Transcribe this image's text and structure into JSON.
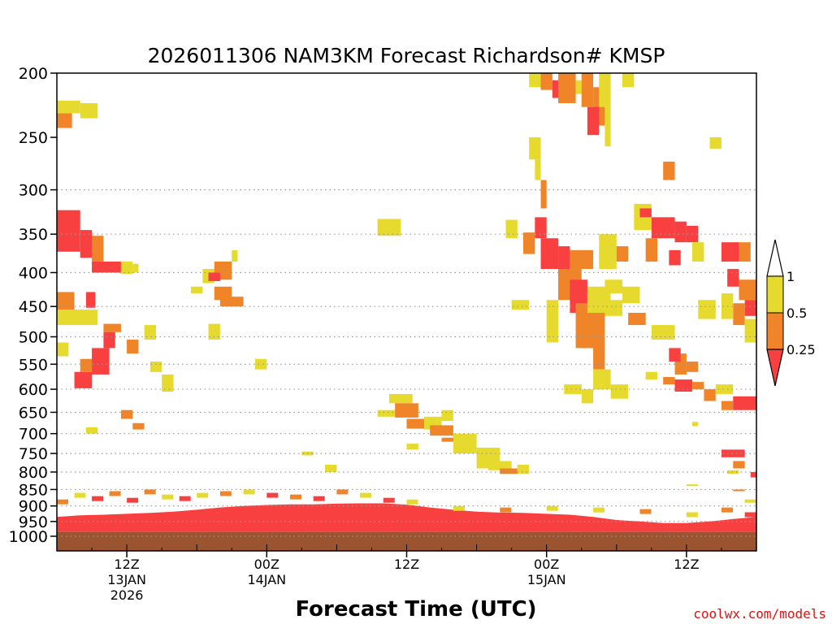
{
  "chart_data": {
    "type": "heatmap",
    "title": "2026011306 NAM3KM Forecast Richardson# KMSP",
    "xlabel": "Forecast Time (UTC)",
    "credit": "coolwx.com/models",
    "y_axis": {
      "scale": "pressure",
      "range": [
        200,
        1000
      ],
      "ticks": [
        200,
        250,
        300,
        350,
        400,
        450,
        500,
        550,
        600,
        650,
        700,
        750,
        800,
        850,
        900,
        950,
        1000
      ],
      "gridlines": [
        300,
        350,
        400,
        450,
        500,
        550,
        600,
        650,
        700,
        750,
        800,
        850,
        900,
        950,
        1000
      ]
    },
    "x_axis": {
      "range_hours_from_init": [
        0,
        60
      ],
      "ticks": [
        {
          "time": "12Z",
          "date": "13JAN",
          "year": "2026",
          "t": 6
        },
        {
          "time": "00Z",
          "date": "14JAN",
          "year": "",
          "t": 18
        },
        {
          "time": "12Z",
          "date": "",
          "year": "",
          "t": 30
        },
        {
          "time": "00Z",
          "date": "15JAN",
          "year": "",
          "t": 42
        },
        {
          "time": "12Z",
          "date": "",
          "year": "",
          "t": 54
        }
      ]
    },
    "legend": {
      "placement": "right",
      "max_label": "1",
      "items": [
        {
          "label": "0.5",
          "color": "#e6da2e",
          "range": [
            0.5,
            1
          ]
        },
        {
          "label": "0.25",
          "color": "#f08428",
          "range": [
            0.25,
            0.5
          ]
        },
        {
          "label": "",
          "color": "#f84040",
          "range": [
            null,
            0.25
          ]
        }
      ]
    },
    "colors": {
      "ri_lt_1": "#e6da2e",
      "ri_lt_05": "#f08428",
      "ri_lt_025": "#f84040",
      "ground": "#9a5530"
    },
    "ground_level_hpa": 985,
    "cells": [
      [
        0,
        2,
        220,
        230,
        "Y"
      ],
      [
        0,
        1.3,
        230,
        242,
        "O"
      ],
      [
        2,
        3.5,
        222,
        234,
        "Y"
      ],
      [
        0,
        2,
        322,
        372,
        "R"
      ],
      [
        2,
        3,
        345,
        380,
        "R"
      ],
      [
        3,
        4,
        352,
        385,
        "O"
      ],
      [
        3,
        5.5,
        385,
        400,
        "R"
      ],
      [
        5.5,
        6.5,
        385,
        402,
        "Y"
      ],
      [
        6.5,
        7,
        388,
        400,
        "Y"
      ],
      [
        0,
        1.5,
        428,
        455,
        "O"
      ],
      [
        2.5,
        3.3,
        428,
        452,
        "R"
      ],
      [
        0,
        3.5,
        455,
        480,
        "Y"
      ],
      [
        4,
        5.5,
        478,
        492,
        "O"
      ],
      [
        4,
        5,
        492,
        520,
        "R"
      ],
      [
        0,
        1,
        510,
        535,
        "Y"
      ],
      [
        3,
        4.5,
        520,
        570,
        "R"
      ],
      [
        2,
        3,
        540,
        565,
        "O"
      ],
      [
        1.5,
        3,
        565,
        598,
        "R"
      ],
      [
        6,
        7,
        505,
        530,
        "O"
      ],
      [
        7.5,
        8.5,
        480,
        505,
        "Y"
      ],
      [
        8,
        9,
        545,
        565,
        "Y"
      ],
      [
        9,
        10,
        570,
        605,
        "Y"
      ],
      [
        11.5,
        12.5,
        420,
        430,
        "Y"
      ],
      [
        12.5,
        13.5,
        395,
        415,
        "Y"
      ],
      [
        13.5,
        15,
        385,
        410,
        "O"
      ],
      [
        13,
        14,
        400,
        412,
        "R"
      ],
      [
        13.5,
        15,
        420,
        440,
        "O"
      ],
      [
        14,
        16,
        435,
        450,
        "O"
      ],
      [
        15,
        15.5,
        370,
        385,
        "Y"
      ],
      [
        13,
        14,
        478,
        505,
        "Y"
      ],
      [
        17,
        18,
        540,
        560,
        "Y"
      ],
      [
        5.5,
        6.5,
        645,
        665,
        "O"
      ],
      [
        6.5,
        7.5,
        675,
        690,
        "O"
      ],
      [
        2.5,
        3.5,
        685,
        700,
        "Y"
      ],
      [
        21,
        22,
        745,
        755,
        "Y"
      ],
      [
        23,
        24,
        780,
        800,
        "Y"
      ],
      [
        27.5,
        29.5,
        332,
        352,
        "Y"
      ],
      [
        27.5,
        29,
        645,
        660,
        "Y"
      ],
      [
        28.5,
        30.5,
        610,
        630,
        "Y"
      ],
      [
        29,
        31,
        630,
        662,
        "O"
      ],
      [
        30,
        32,
        665,
        688,
        "O"
      ],
      [
        31.5,
        33,
        660,
        690,
        "Y"
      ],
      [
        32,
        34,
        680,
        705,
        "O"
      ],
      [
        33,
        35,
        710,
        720,
        "O"
      ],
      [
        33,
        34,
        645,
        670,
        "Y"
      ],
      [
        34,
        36,
        700,
        750,
        "Y"
      ],
      [
        36,
        38,
        735,
        790,
        "Y"
      ],
      [
        37,
        39,
        770,
        795,
        "Y"
      ],
      [
        38,
        39.5,
        790,
        805,
        "O"
      ],
      [
        39.5,
        40.5,
        780,
        805,
        "Y"
      ],
      [
        30,
        31,
        725,
        740,
        "Y"
      ],
      [
        38.5,
        39.5,
        333,
        355,
        "Y"
      ],
      [
        39,
        40.5,
        440,
        455,
        "Y"
      ],
      [
        40.5,
        41.5,
        200,
        210,
        "Y"
      ],
      [
        41.5,
        42.5,
        200,
        212,
        "O"
      ],
      [
        43,
        44.5,
        200,
        222,
        "O"
      ],
      [
        42.5,
        43,
        205,
        218,
        "R"
      ],
      [
        44.5,
        45,
        205,
        215,
        "Y"
      ],
      [
        45,
        46,
        200,
        225,
        "O"
      ],
      [
        46,
        47,
        210,
        240,
        "O"
      ],
      [
        45.5,
        46.5,
        225,
        248,
        "R"
      ],
      [
        46.5,
        47.5,
        200,
        225,
        "Y"
      ],
      [
        47,
        47.5,
        225,
        258,
        "Y"
      ],
      [
        48.5,
        49.5,
        200,
        210,
        "Y"
      ],
      [
        40.5,
        41.5,
        250,
        270,
        "Y"
      ],
      [
        41,
        41.5,
        270,
        290,
        "Y"
      ],
      [
        41.5,
        42,
        290,
        320,
        "O"
      ],
      [
        41,
        42,
        330,
        355,
        "R"
      ],
      [
        40,
        41,
        348,
        375,
        "O"
      ],
      [
        41.5,
        43,
        355,
        395,
        "R"
      ],
      [
        43,
        44,
        365,
        410,
        "R"
      ],
      [
        43,
        45,
        395,
        440,
        "O"
      ],
      [
        44,
        45.5,
        410,
        460,
        "R"
      ],
      [
        44.5,
        47,
        445,
        520,
        "O"
      ],
      [
        45.5,
        47.5,
        420,
        460,
        "Y"
      ],
      [
        47,
        48.5,
        440,
        465,
        "Y"
      ],
      [
        42,
        43,
        440,
        510,
        "Y"
      ],
      [
        45,
        46,
        480,
        520,
        "O"
      ],
      [
        46,
        47,
        515,
        560,
        "O"
      ],
      [
        46,
        47.5,
        560,
        600,
        "Y"
      ],
      [
        43.5,
        45,
        590,
        610,
        "Y"
      ],
      [
        45,
        46,
        600,
        630,
        "Y"
      ],
      [
        47.5,
        49,
        590,
        620,
        "Y"
      ],
      [
        44,
        46,
        370,
        395,
        "O"
      ],
      [
        46.5,
        48,
        350,
        395,
        "Y"
      ],
      [
        48,
        49,
        365,
        385,
        "O"
      ],
      [
        47,
        48.5,
        410,
        430,
        "Y"
      ],
      [
        48.5,
        50,
        420,
        445,
        "Y"
      ],
      [
        49,
        50.5,
        460,
        480,
        "O"
      ],
      [
        51,
        53,
        480,
        505,
        "Y"
      ],
      [
        49.5,
        51,
        315,
        345,
        "Y"
      ],
      [
        51,
        53,
        330,
        355,
        "R"
      ],
      [
        53,
        54,
        335,
        360,
        "R"
      ],
      [
        54,
        55,
        340,
        360,
        "R"
      ],
      [
        52.5,
        53.5,
        370,
        390,
        "R"
      ],
      [
        54.5,
        55.5,
        360,
        385,
        "Y"
      ],
      [
        50.5,
        51.5,
        355,
        385,
        "O"
      ],
      [
        50,
        51,
        320,
        330,
        "R"
      ],
      [
        52,
        53,
        272,
        290,
        "O"
      ],
      [
        56,
        57,
        250,
        260,
        "Y"
      ],
      [
        57,
        58.5,
        360,
        385,
        "R"
      ],
      [
        58.5,
        59.5,
        360,
        385,
        "O"
      ],
      [
        57.5,
        58.5,
        395,
        420,
        "R"
      ],
      [
        58.5,
        60,
        410,
        440,
        "O"
      ],
      [
        59,
        60,
        440,
        465,
        "R"
      ],
      [
        58,
        59,
        445,
        480,
        "O"
      ],
      [
        57,
        58,
        430,
        470,
        "Y"
      ],
      [
        59,
        60,
        470,
        510,
        "Y"
      ],
      [
        55,
        56.5,
        440,
        470,
        "Y"
      ],
      [
        53,
        54,
        530,
        570,
        "O"
      ],
      [
        52.5,
        53.5,
        520,
        545,
        "R"
      ],
      [
        54,
        55,
        545,
        565,
        "O"
      ],
      [
        53,
        54.5,
        580,
        605,
        "R"
      ],
      [
        54.5,
        55.5,
        585,
        600,
        "O"
      ],
      [
        55.5,
        56.5,
        600,
        625,
        "O"
      ],
      [
        56.5,
        58,
        590,
        610,
        "Y"
      ],
      [
        57,
        58,
        625,
        645,
        "O"
      ],
      [
        58,
        60,
        615,
        645,
        "R"
      ],
      [
        54.5,
        55,
        672,
        682,
        "Y"
      ],
      [
        57,
        59,
        740,
        760,
        "R"
      ],
      [
        58,
        59,
        770,
        790,
        "O"
      ],
      [
        59.5,
        60,
        800,
        815,
        "R"
      ],
      [
        57.5,
        58.5,
        795,
        805,
        "Y"
      ],
      [
        50.5,
        51.5,
        565,
        580,
        "Y"
      ],
      [
        52,
        53,
        575,
        590,
        "O"
      ],
      [
        54,
        55,
        835,
        840,
        "Y"
      ],
      [
        58,
        59,
        850,
        855,
        "O"
      ],
      [
        59,
        60,
        880,
        890,
        "Y"
      ]
    ]
  }
}
